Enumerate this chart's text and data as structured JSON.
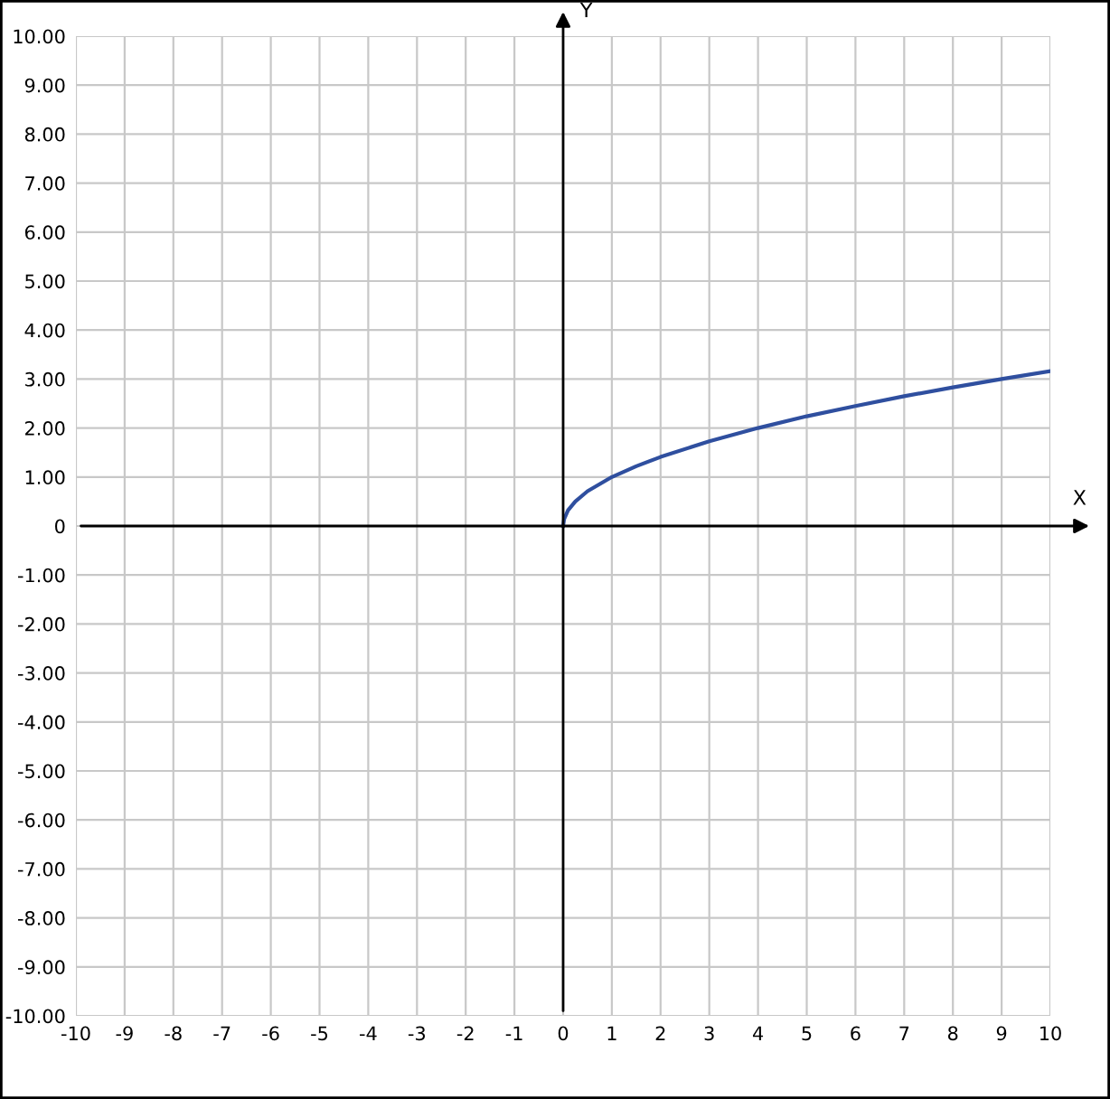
{
  "chart_data": {
    "type": "line",
    "xlabel": "X",
    "ylabel": "Y",
    "x": [
      0,
      0.02,
      0.1,
      0.25,
      0.5,
      1,
      1.5,
      2,
      3,
      4,
      5,
      6,
      7,
      8,
      9,
      10
    ],
    "series": [
      {
        "color": "#2f4f9f",
        "values": [
          0,
          0.14,
          0.32,
          0.5,
          0.71,
          1,
          1.22,
          1.41,
          1.73,
          2,
          2.24,
          2.45,
          2.65,
          2.83,
          3,
          3.16
        ]
      }
    ],
    "xlim": [
      -10,
      10
    ],
    "ylim": [
      -10,
      10
    ],
    "xticks": [
      -10,
      -9,
      -8,
      -7,
      -6,
      -5,
      -4,
      -3,
      -2,
      -1,
      0,
      1,
      2,
      3,
      4,
      5,
      6,
      7,
      8,
      9,
      10
    ],
    "yticks": [
      {
        "value": -10,
        "label": "-10.00"
      },
      {
        "value": -9,
        "label": "-9.00"
      },
      {
        "value": -8,
        "label": "-8.00"
      },
      {
        "value": -7,
        "label": "-7.00"
      },
      {
        "value": -6,
        "label": "-6.00"
      },
      {
        "value": -5,
        "label": "-5.00"
      },
      {
        "value": -4,
        "label": "-4.00"
      },
      {
        "value": -3,
        "label": "-3.00"
      },
      {
        "value": -2,
        "label": "-2.00"
      },
      {
        "value": -1,
        "label": "-1.00"
      },
      0,
      {
        "value": 1,
        "label": "1.00"
      },
      {
        "value": 2,
        "label": "2.00"
      },
      {
        "value": 3,
        "label": "3.00"
      },
      {
        "value": 4,
        "label": "4.00"
      },
      {
        "value": 5,
        "label": "5.00"
      },
      {
        "value": 6,
        "label": "6.00"
      },
      {
        "value": 7,
        "label": "7.00"
      },
      {
        "value": 8,
        "label": "8.00"
      },
      {
        "value": 9,
        "label": "9.00"
      },
      {
        "value": 10,
        "label": "10.00"
      }
    ],
    "grid": true,
    "marker": "none",
    "line_style": "solid",
    "legend": false
  }
}
